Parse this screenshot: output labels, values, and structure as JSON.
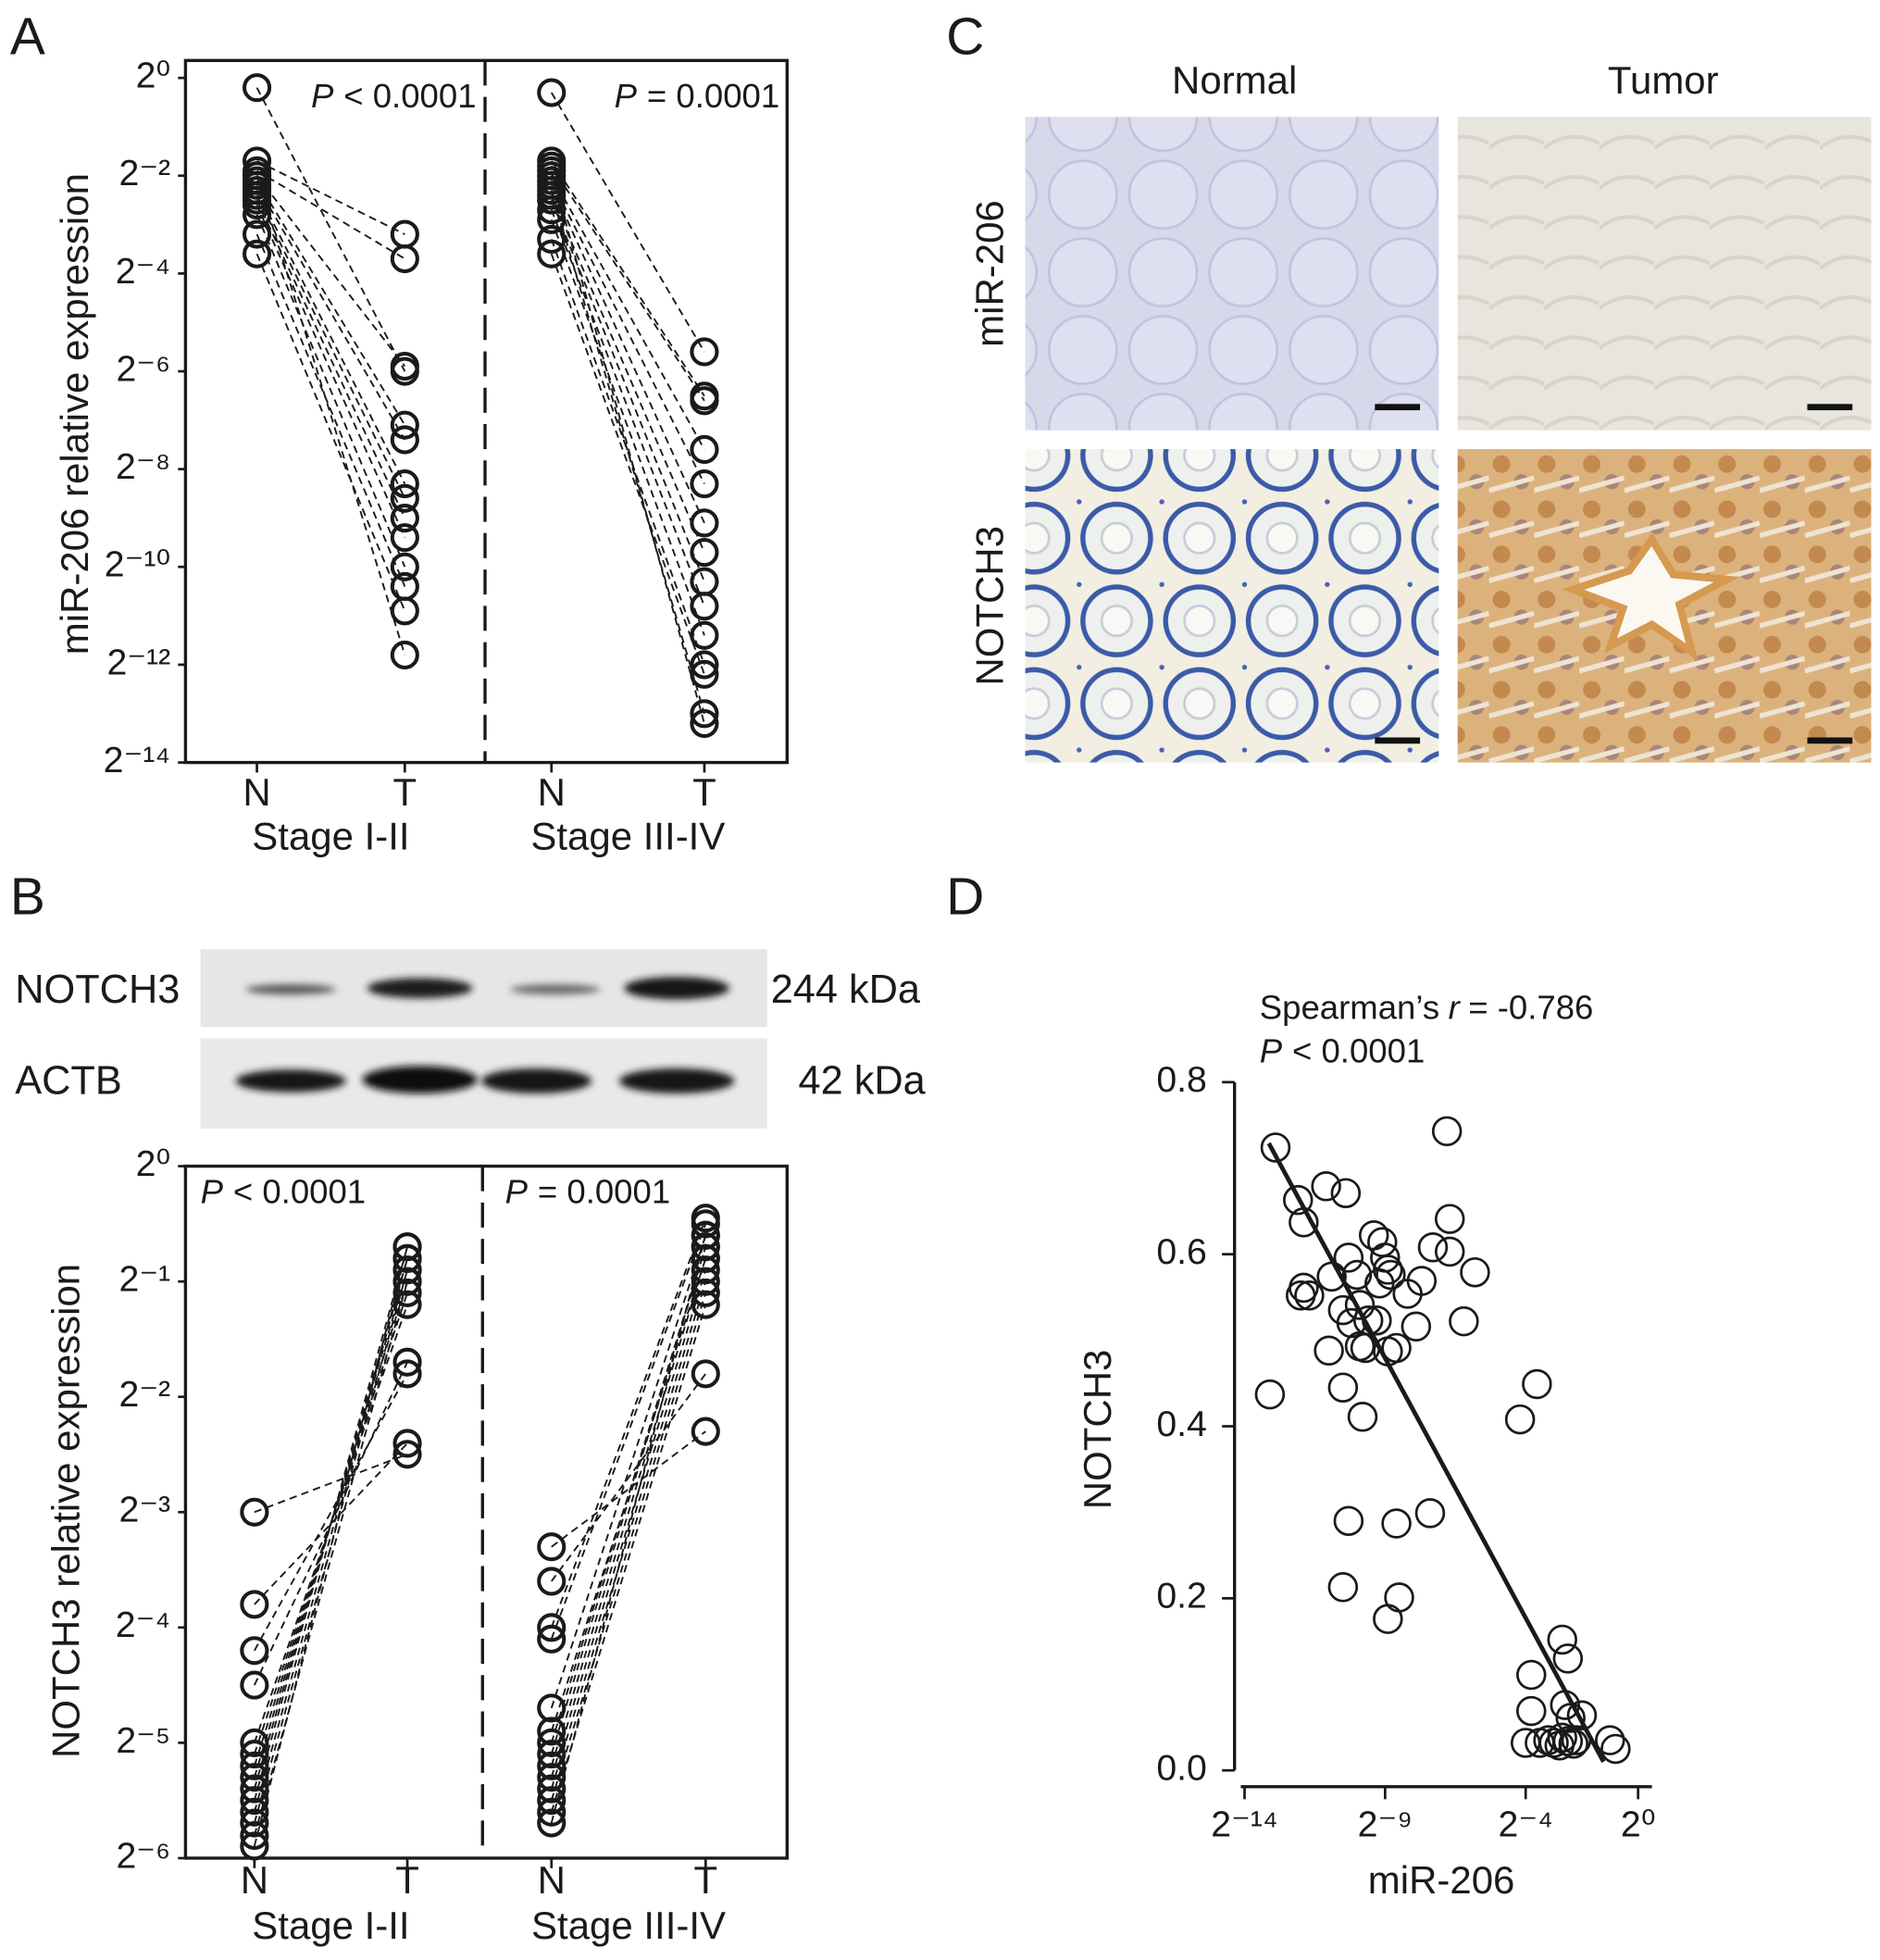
{
  "chart_data": [
    {
      "panel": "A",
      "type": "paired",
      "ylabel": "miR-206 relative expression",
      "log_scale": true,
      "color": "#1a1a1a",
      "ylim": [
        6.103515625e-05,
        1.28
      ],
      "yticks": [
        {
          "value": 1,
          "label": "2⁰"
        },
        {
          "value": 0.25,
          "label": "2⁻²"
        },
        {
          "value": 0.0625,
          "label": "2⁻⁴"
        },
        {
          "value": 0.015625,
          "label": "2⁻⁶"
        },
        {
          "value": 0.00390625,
          "label": "2⁻⁸"
        },
        {
          "value": 0.0009765625,
          "label": "2⁻¹⁰"
        },
        {
          "value": 0.000244140625,
          "label": "2⁻¹²"
        },
        {
          "value": 6.103515625e-05,
          "label": "2⁻¹⁴"
        }
      ],
      "groups": [
        {
          "name": "Stage I-II",
          "p_symbol": "P",
          "p_text": "< 0.0001",
          "series": [
            {
              "name": "N",
              "values": [
                0.871,
                0.308,
                0.268,
                0.25,
                0.233,
                0.218,
                0.203,
                0.189,
                0.177,
                0.165,
                0.144,
                0.109,
                0.0825,
                0.25
              ]
            },
            {
              "name": "T",
              "values": [
                0.0156,
                0.109,
                0.077,
                0.0168,
                0.00729,
                0.00592,
                0.00317,
                0.00258,
                0.00195,
                0.00148,
                0.000977,
                0.00074,
                0.000523,
                0.00028
              ]
            }
          ]
        },
        {
          "name": "Stage III-IV",
          "p_symbol": "P",
          "p_text": "= 0.0001",
          "series": [
            {
              "name": "N",
              "values": [
                0.812,
                0.308,
                0.287,
                0.25,
                0.233,
                0.218,
                0.189,
                0.177,
                0.154,
                0.134,
                0.1015,
                0.0825,
                0.203,
                0.268
              ]
            },
            {
              "name": "T",
              "values": [
                0.0206,
                0.011,
                0.0103,
                0.00516,
                0.00317,
                0.00182,
                0.0012,
                0.000793,
                0.00056,
                0.00037,
                0.000244,
                0.000213,
                0.000122,
                0.000106
              ]
            }
          ]
        }
      ]
    },
    {
      "panel": "B",
      "type": "paired",
      "ylabel": "NOTCH3 relative expression",
      "log_scale": true,
      "color": "#1a1a1a",
      "ylim": [
        0.015625,
        1
      ],
      "yticks": [
        {
          "value": 1,
          "label": "2⁰"
        },
        {
          "value": 0.5,
          "label": "2⁻¹"
        },
        {
          "value": 0.25,
          "label": "2⁻²"
        },
        {
          "value": 0.125,
          "label": "2⁻³"
        },
        {
          "value": 0.0625,
          "label": "2⁻⁴"
        },
        {
          "value": 0.03125,
          "label": "2⁻⁵"
        },
        {
          "value": 0.015625,
          "label": "2⁻⁶"
        }
      ],
      "groups": [
        {
          "name": "Stage I-II",
          "p_symbol": "P",
          "p_text": "< 0.0001",
          "series": [
            {
              "name": "N",
              "values": [
                0.125,
                0.0718,
                0.0544,
                0.0442,
                0.03125,
                0.0292,
                0.0272,
                0.0254,
                0.0237,
                0.0221,
                0.0206,
                0.0193,
                0.0179,
                0.0168
              ]
            },
            {
              "name": "T",
              "values": [
                0.177,
                0.189,
                0.287,
                0.308,
                0.435,
                0.467,
                0.5,
                0.536,
                0.574,
                0.616,
                0.574,
                0.536,
                0.5,
                0.616
              ]
            }
          ]
        },
        {
          "name": "Stage III-IV",
          "p_symbol": "P",
          "p_text": "= 0.0001",
          "series": [
            {
              "name": "N",
              "values": [
                0.1015,
                0.0825,
                0.0625,
                0.0583,
                0.0385,
                0.03125,
                0.0272,
                0.0254,
                0.0237,
                0.0221,
                0.0206,
                0.0193,
                0.0292,
                0.0335
              ]
            },
            {
              "name": "T",
              "values": [
                0.203,
                0.287,
                0.732,
                0.707,
                0.66,
                0.616,
                0.574,
                0.536,
                0.5,
                0.467,
                0.435,
                0.66,
                0.616,
                0.574
              ]
            }
          ]
        }
      ]
    },
    {
      "panel": "D",
      "type": "scatter",
      "xlabel": "miR-206",
      "ylabel": "NOTCH3",
      "x_log": true,
      "color": "#1a1a1a",
      "stat_label": "Spearman’s",
      "stat_symbol": "r",
      "stat_value": "= -0.786",
      "p_symbol": "P",
      "p_text": "< 0.0001",
      "xlim": [
        6.103515625e-05,
        1
      ],
      "xticks": [
        {
          "value": 6.103515625e-05,
          "label": "2⁻¹⁴"
        },
        {
          "value": 0.001953125,
          "label": "2⁻⁹"
        },
        {
          "value": 0.0625,
          "label": "2⁻⁴"
        },
        {
          "value": 1,
          "label": "2⁰"
        }
      ],
      "ylim": [
        0,
        0.8
      ],
      "yticks": [
        {
          "value": 0,
          "label": "0.0"
        },
        0.2,
        0.4,
        0.6,
        0.8
      ],
      "x": [
        0.000114,
        0.000131,
        0.000228,
        0.000262,
        0.000262,
        0.000244,
        0.000301,
        0.000456,
        0.00074,
        0.000488,
        0.000691,
        0.000523,
        0.000793,
        0.000977,
        0.000851,
        0.001047,
        0.00148,
        0.00182,
        0.00195,
        0.00209,
        0.0017,
        0.00129,
        0.001047,
        0.0012,
        0.00159,
        0.00224,
        0.00258,
        0.00209,
        0.0034,
        0.00481,
        0.00419,
        0.00634,
        0.00897,
        0.00962,
        0.00962,
        0.0136,
        0.0179,
        0.000691,
        0.00112,
        0.000793,
        0.000691,
        0.00258,
        0.00592,
        0.00276,
        0.00209,
        0.0544,
        0.0825,
        0.0718,
        0.0718,
        0.0625,
        0.0884,
        0.154,
        0.177,
        0.165,
        0.189,
        0.25,
        0.5,
        0.574,
        0.125,
        0.144,
        0.177,
        0.203,
        0.218,
        0.109,
        0.154
      ],
      "values": [
        0.437,
        0.724,
        0.663,
        0.637,
        0.561,
        0.552,
        0.552,
        0.679,
        0.671,
        0.488,
        0.535,
        0.574,
        0.596,
        0.576,
        0.52,
        0.541,
        0.622,
        0.614,
        0.596,
        0.582,
        0.566,
        0.523,
        0.493,
        0.491,
        0.523,
        0.576,
        0.491,
        0.487,
        0.554,
        0.569,
        0.516,
        0.608,
        0.743,
        0.641,
        0.603,
        0.522,
        0.579,
        0.445,
        0.411,
        0.29,
        0.213,
        0.287,
        0.299,
        0.201,
        0.176,
        0.408,
        0.449,
        0.111,
        0.069,
        0.032,
        0.032,
        0.152,
        0.13,
        0.076,
        0.061,
        0.064,
        0.035,
        0.025,
        0.032,
        0.029,
        0.034,
        0.031,
        0.035,
        0.035,
        0.038
      ],
      "fit": {
        "x": [
          0.000111,
          0.426
        ],
        "y": [
          0.729,
          0.01
        ]
      }
    }
  ],
  "blot": {
    "rows": [
      {
        "label": "NOTCH3",
        "size": "244 kDa"
      },
      {
        "label": "ACTB",
        "size": "42 kDa"
      }
    ]
  },
  "ihc": {
    "panel": "C",
    "columns": [
      "Normal",
      "Tumor"
    ],
    "rows": [
      "miR-206",
      "NOTCH3"
    ]
  }
}
